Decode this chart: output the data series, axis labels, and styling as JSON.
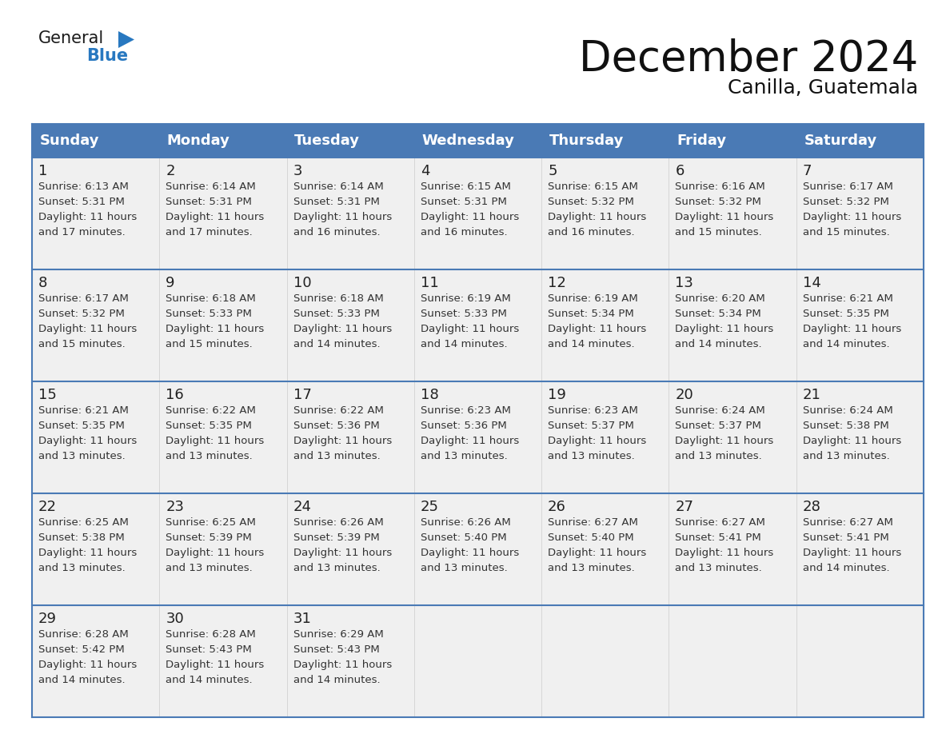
{
  "title": "December 2024",
  "subtitle": "Canilla, Guatemala",
  "header_color": "#4a7ab5",
  "header_text_color": "#ffffff",
  "cell_bg_color": "#f0f0f0",
  "last_row_bg_color": "#f0f0f0",
  "border_color": "#4a7ab5",
  "separator_color": "#4a7ab5",
  "day_headers": [
    "Sunday",
    "Monday",
    "Tuesday",
    "Wednesday",
    "Thursday",
    "Friday",
    "Saturday"
  ],
  "title_fontsize": 38,
  "subtitle_fontsize": 18,
  "header_fontsize": 13,
  "day_num_fontsize": 13,
  "cell_fontsize": 9.5,
  "weeks": [
    [
      {
        "day": 1,
        "sunrise": "6:13 AM",
        "sunset": "5:31 PM",
        "daylight_hours": 11,
        "daylight_minutes": 17
      },
      {
        "day": 2,
        "sunrise": "6:14 AM",
        "sunset": "5:31 PM",
        "daylight_hours": 11,
        "daylight_minutes": 17
      },
      {
        "day": 3,
        "sunrise": "6:14 AM",
        "sunset": "5:31 PM",
        "daylight_hours": 11,
        "daylight_minutes": 16
      },
      {
        "day": 4,
        "sunrise": "6:15 AM",
        "sunset": "5:31 PM",
        "daylight_hours": 11,
        "daylight_minutes": 16
      },
      {
        "day": 5,
        "sunrise": "6:15 AM",
        "sunset": "5:32 PM",
        "daylight_hours": 11,
        "daylight_minutes": 16
      },
      {
        "day": 6,
        "sunrise": "6:16 AM",
        "sunset": "5:32 PM",
        "daylight_hours": 11,
        "daylight_minutes": 15
      },
      {
        "day": 7,
        "sunrise": "6:17 AM",
        "sunset": "5:32 PM",
        "daylight_hours": 11,
        "daylight_minutes": 15
      }
    ],
    [
      {
        "day": 8,
        "sunrise": "6:17 AM",
        "sunset": "5:32 PM",
        "daylight_hours": 11,
        "daylight_minutes": 15
      },
      {
        "day": 9,
        "sunrise": "6:18 AM",
        "sunset": "5:33 PM",
        "daylight_hours": 11,
        "daylight_minutes": 15
      },
      {
        "day": 10,
        "sunrise": "6:18 AM",
        "sunset": "5:33 PM",
        "daylight_hours": 11,
        "daylight_minutes": 14
      },
      {
        "day": 11,
        "sunrise": "6:19 AM",
        "sunset": "5:33 PM",
        "daylight_hours": 11,
        "daylight_minutes": 14
      },
      {
        "day": 12,
        "sunrise": "6:19 AM",
        "sunset": "5:34 PM",
        "daylight_hours": 11,
        "daylight_minutes": 14
      },
      {
        "day": 13,
        "sunrise": "6:20 AM",
        "sunset": "5:34 PM",
        "daylight_hours": 11,
        "daylight_minutes": 14
      },
      {
        "day": 14,
        "sunrise": "6:21 AM",
        "sunset": "5:35 PM",
        "daylight_hours": 11,
        "daylight_minutes": 14
      }
    ],
    [
      {
        "day": 15,
        "sunrise": "6:21 AM",
        "sunset": "5:35 PM",
        "daylight_hours": 11,
        "daylight_minutes": 13
      },
      {
        "day": 16,
        "sunrise": "6:22 AM",
        "sunset": "5:35 PM",
        "daylight_hours": 11,
        "daylight_minutes": 13
      },
      {
        "day": 17,
        "sunrise": "6:22 AM",
        "sunset": "5:36 PM",
        "daylight_hours": 11,
        "daylight_minutes": 13
      },
      {
        "day": 18,
        "sunrise": "6:23 AM",
        "sunset": "5:36 PM",
        "daylight_hours": 11,
        "daylight_minutes": 13
      },
      {
        "day": 19,
        "sunrise": "6:23 AM",
        "sunset": "5:37 PM",
        "daylight_hours": 11,
        "daylight_minutes": 13
      },
      {
        "day": 20,
        "sunrise": "6:24 AM",
        "sunset": "5:37 PM",
        "daylight_hours": 11,
        "daylight_minutes": 13
      },
      {
        "day": 21,
        "sunrise": "6:24 AM",
        "sunset": "5:38 PM",
        "daylight_hours": 11,
        "daylight_minutes": 13
      }
    ],
    [
      {
        "day": 22,
        "sunrise": "6:25 AM",
        "sunset": "5:38 PM",
        "daylight_hours": 11,
        "daylight_minutes": 13
      },
      {
        "day": 23,
        "sunrise": "6:25 AM",
        "sunset": "5:39 PM",
        "daylight_hours": 11,
        "daylight_minutes": 13
      },
      {
        "day": 24,
        "sunrise": "6:26 AM",
        "sunset": "5:39 PM",
        "daylight_hours": 11,
        "daylight_minutes": 13
      },
      {
        "day": 25,
        "sunrise": "6:26 AM",
        "sunset": "5:40 PM",
        "daylight_hours": 11,
        "daylight_minutes": 13
      },
      {
        "day": 26,
        "sunrise": "6:27 AM",
        "sunset": "5:40 PM",
        "daylight_hours": 11,
        "daylight_minutes": 13
      },
      {
        "day": 27,
        "sunrise": "6:27 AM",
        "sunset": "5:41 PM",
        "daylight_hours": 11,
        "daylight_minutes": 13
      },
      {
        "day": 28,
        "sunrise": "6:27 AM",
        "sunset": "5:41 PM",
        "daylight_hours": 11,
        "daylight_minutes": 14
      }
    ],
    [
      {
        "day": 29,
        "sunrise": "6:28 AM",
        "sunset": "5:42 PM",
        "daylight_hours": 11,
        "daylight_minutes": 14
      },
      {
        "day": 30,
        "sunrise": "6:28 AM",
        "sunset": "5:43 PM",
        "daylight_hours": 11,
        "daylight_minutes": 14
      },
      {
        "day": 31,
        "sunrise": "6:29 AM",
        "sunset": "5:43 PM",
        "daylight_hours": 11,
        "daylight_minutes": 14
      },
      null,
      null,
      null,
      null
    ]
  ],
  "logo_general_color": "#1a1a1a",
  "logo_blue_color": "#2878c0",
  "logo_triangle_color": "#2878c0"
}
